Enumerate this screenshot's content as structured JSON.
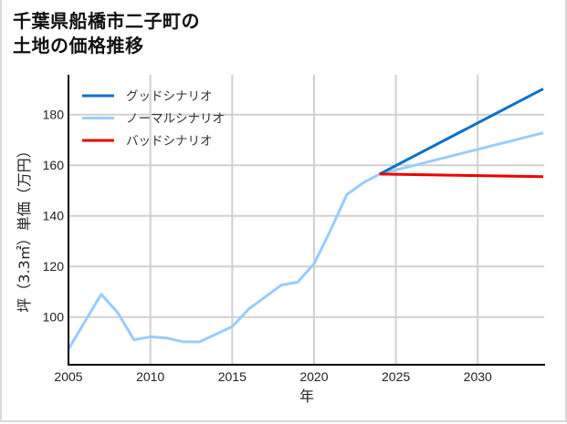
{
  "title_lines": [
    "千葉県船橋市二子町の",
    "土地の価格推移"
  ],
  "chart_data": {
    "type": "line",
    "title": "千葉県船橋市二子町の土地の価格推移",
    "xlabel": "年",
    "ylabel": "坪（3.3㎡）単価（万円）",
    "xlim": [
      2005,
      2034
    ],
    "ylim": [
      82,
      197
    ],
    "xticks": [
      2005,
      2010,
      2015,
      2020,
      2025,
      2030
    ],
    "yticks": [
      100,
      120,
      140,
      160,
      180
    ],
    "grid": true,
    "legend_position": "upper left",
    "series": [
      {
        "name": "グッドシナリオ",
        "color": "#0a72c8",
        "x": [
          2024,
          2034
        ],
        "values": [
          156.5,
          190.2
        ]
      },
      {
        "name": "ノーマルシナリオ",
        "color": "#99ccff",
        "x": [
          2005,
          2007,
          2008,
          2009,
          2010,
          2011,
          2012,
          2013,
          2014,
          2015,
          2016,
          2017,
          2018,
          2019,
          2020,
          2021,
          2022,
          2023,
          2024,
          2034
        ],
        "values": [
          87.3,
          109.0,
          101.8,
          91.0,
          92.2,
          91.7,
          90.2,
          90.2,
          93.2,
          96.2,
          103.1,
          107.9,
          112.6,
          113.8,
          121.0,
          134.2,
          148.4,
          153.0,
          156.5,
          172.8
        ]
      },
      {
        "name": "バッドシナリオ",
        "color": "#ee0000",
        "x": [
          2024,
          2034
        ],
        "values": [
          156.5,
          155.5
        ]
      }
    ]
  }
}
